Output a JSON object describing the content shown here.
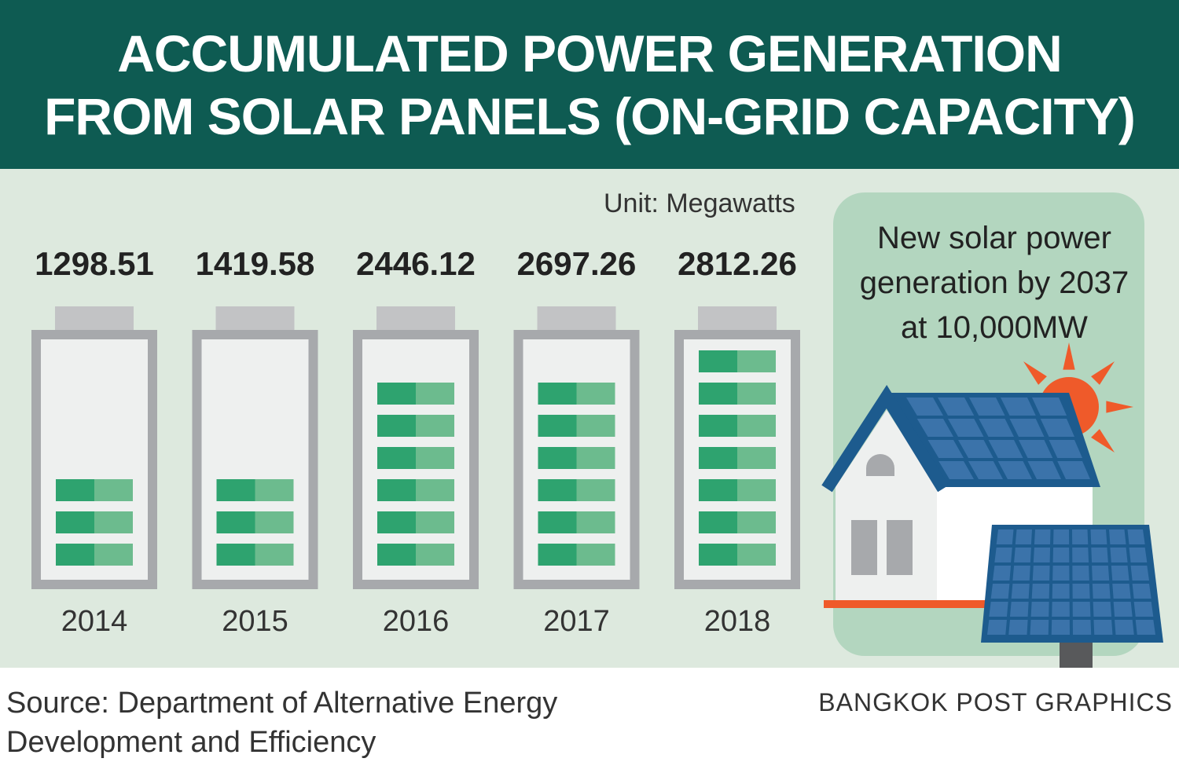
{
  "header": {
    "title_line1": "ACCUMULATED POWER GENERATION",
    "title_line2": "FROM SOLAR PANELS (ON-GRID CAPACITY)"
  },
  "unit_label": "Unit: Megawatts",
  "callout": {
    "line1": "New solar power",
    "line2": "generation by 2037",
    "line3": "at 10,000MW"
  },
  "footer": {
    "source_line1": "Source: Department of Alternative Energy",
    "source_line2": "Development and Efficiency",
    "credit": "BANGKOK POST GRAPHICS"
  },
  "chart_data": {
    "type": "bar",
    "categories": [
      "2014",
      "2015",
      "2016",
      "2017",
      "2018"
    ],
    "values": [
      1298.51,
      1419.58,
      2446.12,
      2697.26,
      2812.26
    ],
    "value_labels": [
      "1298.51",
      "1419.58",
      "2446.12",
      "2697.26",
      "2812.26"
    ],
    "unit": "Megawatts",
    "battery_segments": [
      3,
      3,
      6,
      6,
      7
    ],
    "ylim": [
      0,
      2812.26
    ]
  },
  "colors": {
    "header_bg": "#0e5b52",
    "panel_bg": "#dde9de",
    "battery_frame": "#a7a9ac",
    "segment_dark": "#2ea36f",
    "segment_light": "#6cbb8e",
    "roof": "#1d5b8e",
    "solar_cell": "#3b73aa",
    "sun": "#ef5a2a"
  }
}
